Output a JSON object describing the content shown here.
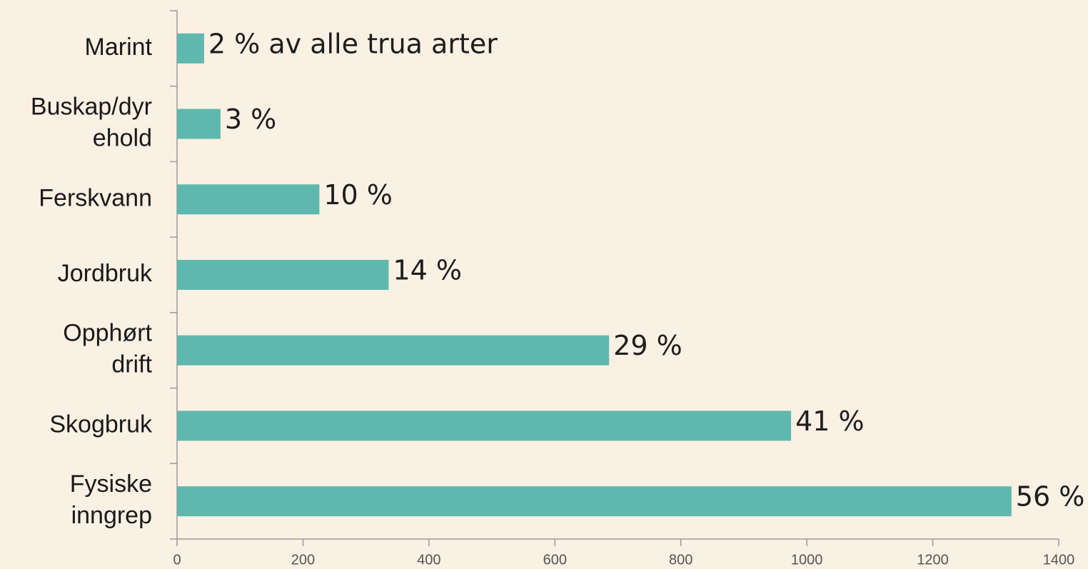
{
  "chart_data": {
    "type": "hbar",
    "categories": [
      [
        "Marint"
      ],
      [
        "Buskap/dyr",
        "ehold"
      ],
      [
        "Ferskvann"
      ],
      [
        "Jordbruk"
      ],
      [
        "Opphørt",
        "drift"
      ],
      [
        "Skogbruk"
      ],
      [
        "Fysiske",
        "inngrep"
      ]
    ],
    "values": [
      43,
      69,
      226,
      336,
      686,
      975,
      1325
    ],
    "annotations": [
      "2 % av alle trua arter",
      "3 %",
      "10 %",
      "14 %",
      "29 %",
      "41 %",
      "56 %"
    ],
    "color": "#5fb8ae",
    "xlim": [
      0,
      1400
    ],
    "xticks": [
      0,
      200,
      400,
      600,
      800,
      1000,
      1200,
      1400
    ]
  }
}
